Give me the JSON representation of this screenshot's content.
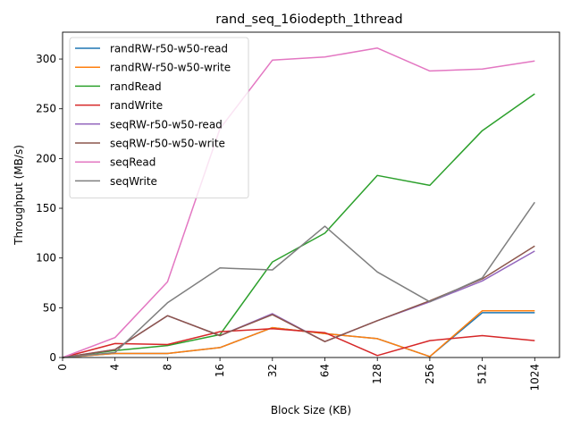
{
  "chart_data": {
    "type": "line",
    "title": "rand_seq_16iodepth_1thread",
    "xlabel": "Block Size (KB)",
    "ylabel": "Throughput (MB/s)",
    "categories": [
      "0",
      "4",
      "8",
      "16",
      "32",
      "64",
      "128",
      "256",
      "512",
      "1024"
    ],
    "ylim": [
      0,
      327
    ],
    "yticks": [
      0,
      50,
      100,
      150,
      200,
      250,
      300
    ],
    "grid": false,
    "legend_position": "upper-left",
    "series": [
      {
        "name": "randRW-r50-w50-read",
        "color": "#1f77b4",
        "values": [
          0,
          4,
          4,
          10,
          30,
          24,
          19,
          1,
          45,
          45
        ]
      },
      {
        "name": "randRW-r50-w50-write",
        "color": "#ff7f0e",
        "values": [
          0,
          4,
          4,
          10,
          30,
          24,
          19,
          1,
          47,
          47
        ]
      },
      {
        "name": "randRead",
        "color": "#2ca02c",
        "values": [
          0,
          7,
          12,
          23,
          96,
          125,
          183,
          173,
          228,
          265
        ]
      },
      {
        "name": "randWrite",
        "color": "#d62728",
        "values": [
          0,
          14,
          13,
          26,
          29,
          25,
          2,
          17,
          22,
          17
        ]
      },
      {
        "name": "seqRW-r50-w50-read",
        "color": "#9467bd",
        "values": [
          0,
          8,
          42,
          22,
          44,
          16,
          37,
          56,
          77,
          107
        ]
      },
      {
        "name": "seqRW-r50-w50-write",
        "color": "#8c564b",
        "values": [
          0,
          8,
          42,
          22,
          43,
          16,
          37,
          57,
          79,
          112
        ]
      },
      {
        "name": "seqRead",
        "color": "#e377c2",
        "values": [
          0,
          20,
          76,
          230,
          299,
          302,
          311,
          288,
          290,
          298
        ]
      },
      {
        "name": "seqWrite",
        "color": "#7f7f7f",
        "values": [
          0,
          5,
          55,
          90,
          88,
          132,
          86,
          56,
          80,
          156
        ]
      }
    ]
  }
}
